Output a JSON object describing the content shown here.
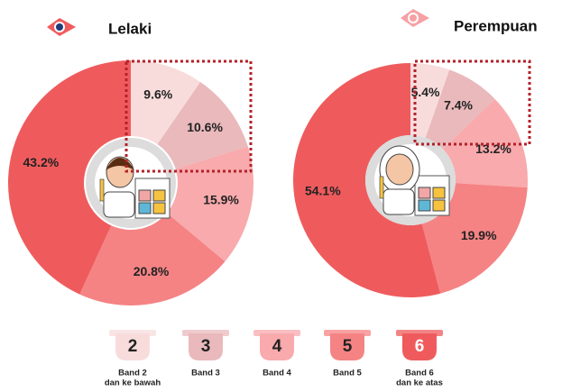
{
  "chart_data": [
    {
      "type": "pie",
      "title": "Lelaki",
      "values": [
        9.6,
        10.6,
        15.9,
        20.8,
        43.2
      ],
      "value_labels": [
        "9.6%",
        "10.6%",
        "15.9%",
        "20.8%",
        "43.2%"
      ],
      "colors": [
        "#f8dcdc",
        "#e9b9bc",
        "#f8aaad",
        "#f58384",
        "#ef5b5d"
      ]
    },
    {
      "type": "pie",
      "title": "Perempuan",
      "values": [
        5.4,
        7.4,
        13.2,
        19.9,
        54.1
      ],
      "value_labels": [
        "5.4%",
        "7.4%",
        "13.2%",
        "19.9%",
        "54.1%"
      ],
      "colors": [
        "#f8dcdc",
        "#e9b9bc",
        "#f8aaad",
        "#f58384",
        "#ef5b5d"
      ]
    }
  ],
  "legend": [
    {
      "number": "2",
      "label": [
        "Band 2",
        "dan ke bawah"
      ],
      "color": "#f8dcdc"
    },
    {
      "number": "3",
      "label": [
        "Band 3"
      ],
      "color": "#e9b9bc"
    },
    {
      "number": "4",
      "label": [
        "Band 4"
      ],
      "color": "#f8aaad"
    },
    {
      "number": "5",
      "label": [
        "Band 5"
      ],
      "color": "#f58384"
    },
    {
      "number": "6",
      "label": [
        "Band 6",
        "dan ke atas"
      ],
      "color": "#ef5b5d"
    }
  ]
}
